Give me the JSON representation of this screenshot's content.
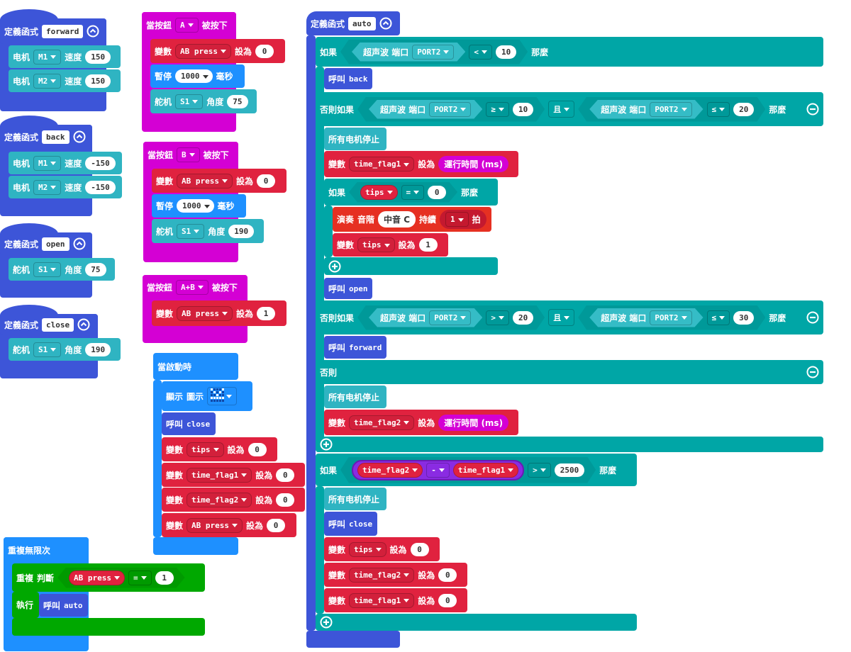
{
  "functions": [
    {
      "rows": [
        [
          "定義函式",
          "forward"
        ],
        [
          "电机",
          "M1",
          "速度",
          150
        ],
        [
          "电机",
          "M2",
          "速度",
          150
        ]
      ]
    },
    {
      "rows": [
        [
          "定義函式",
          "back"
        ],
        [
          "电机",
          "M1",
          "速度",
          -150
        ],
        [
          "电机",
          "M2",
          "速度",
          -150
        ]
      ]
    },
    {
      "rows": [
        [
          "定義函式",
          "open"
        ],
        [
          "舵机",
          "S1",
          "角度",
          75
        ]
      ]
    },
    {
      "rows": [
        [
          "定義函式",
          "close"
        ],
        [
          "舵机",
          "S1",
          "角度",
          190
        ]
      ]
    }
  ],
  "buttons": [
    {
      "rows": [
        [
          "當按鈕",
          "A",
          "被按下"
        ],
        [
          "變數",
          "AB press",
          "設為",
          0
        ],
        [
          "暫停",
          1000,
          "毫秒"
        ],
        [
          "舵机",
          "S1",
          "角度",
          75
        ]
      ]
    },
    {
      "rows": [
        [
          "當按鈕",
          "B",
          "被按下"
        ],
        [
          "變數",
          "AB press",
          "設為",
          0
        ],
        [
          "暫停",
          1000,
          "毫秒"
        ],
        [
          "舵机",
          "S1",
          "角度",
          190
        ]
      ]
    },
    {
      "rows": [
        [
          "當按鈕",
          "A+B",
          "被按下"
        ],
        [
          "變數",
          "AB press",
          "設為",
          1
        ]
      ]
    }
  ],
  "on_start": {
    "rows": [
      [
        "當啟動時"
      ],
      [
        "顯示",
        "圖示"
      ],
      [
        "呼叫",
        "close"
      ],
      [
        "變數",
        "tips",
        "設為",
        0
      ],
      [
        "變數",
        "time_flag1",
        "設為",
        0
      ],
      [
        "變數",
        "time_flag2",
        "設為",
        0
      ],
      [
        "變數",
        "AB press",
        "設為",
        0
      ]
    ]
  },
  "forever": {
    "rows": [
      [
        "重複無限次"
      ],
      [
        "重複",
        "判斷",
        "AB press",
        "=",
        1
      ],
      [
        "執行"
      ],
      [
        "呼叫",
        "auto"
      ]
    ]
  },
  "auto": {
    "rows": [
      [
        "定義函式",
        "auto"
      ],
      [
        "如果",
        "超声波 端口",
        "PORT2",
        "<",
        10,
        "那麼"
      ],
      [
        "呼叫",
        "back"
      ],
      [
        "否則如果",
        "超声波 端口",
        "PORT2",
        "≥",
        10,
        "且",
        "超声波 端口",
        "PORT2",
        "≤",
        20,
        "那麼"
      ],
      [
        "所有电机停止"
      ],
      [
        "變數",
        "time_flag1",
        "設為",
        "運行時間 (ms)"
      ],
      [
        "如果",
        "tips",
        "=",
        0,
        "那麼"
      ],
      [
        "演奏",
        "音階",
        "中音 C",
        "持續",
        1,
        "拍"
      ],
      [
        "變數",
        "tips",
        "設為",
        1
      ],
      [
        "呼叫",
        "open"
      ],
      [
        "否則如果",
        "超声波 端口",
        "PORT2",
        ">",
        20,
        "且",
        "超声波 端口",
        "PORT2",
        "≤",
        30,
        "那麼"
      ],
      [
        "呼叫",
        "forward"
      ],
      [
        "否則"
      ],
      [
        "所有电机停止"
      ],
      [
        "變數",
        "time_flag2",
        "設為",
        "運行時間 (ms)"
      ],
      [
        "如果",
        "time_flag2",
        "-",
        "time_flag1",
        ">",
        2500,
        "那麼"
      ],
      [
        "所有电机停止"
      ],
      [
        "呼叫",
        "close"
      ],
      [
        "變數",
        "tips",
        "設為",
        0
      ],
      [
        "變數",
        "time_flag2",
        "設為",
        0
      ],
      [
        "變數",
        "time_flag1",
        "設為",
        0
      ]
    ]
  }
}
